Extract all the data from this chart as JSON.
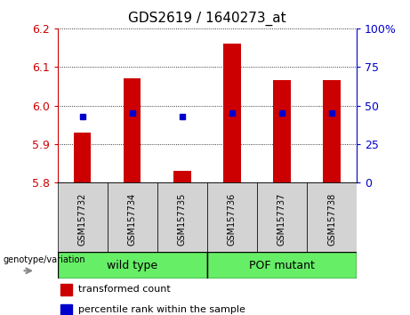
{
  "title": "GDS2619 / 1640273_at",
  "samples": [
    "GSM157732",
    "GSM157734",
    "GSM157735",
    "GSM157736",
    "GSM157737",
    "GSM157738"
  ],
  "red_values": [
    5.93,
    6.07,
    5.83,
    6.16,
    6.065,
    6.065
  ],
  "blue_values": [
    5.972,
    5.981,
    5.972,
    5.981,
    5.981,
    5.981
  ],
  "y_min": 5.8,
  "y_max": 6.2,
  "y_ticks_left": [
    5.8,
    5.9,
    6.0,
    6.1,
    6.2
  ],
  "y_ticks_right": [
    0,
    25,
    50,
    75,
    100
  ],
  "groups": [
    {
      "label": "wild type",
      "start": 0,
      "end": 3,
      "color": "#7cfc00"
    },
    {
      "label": "POF mutant",
      "start": 3,
      "end": 6,
      "color": "#7cfc00"
    }
  ],
  "group_label": "genotype/variation",
  "legend_red": "transformed count",
  "legend_blue": "percentile rank within the sample",
  "bar_color": "#cc0000",
  "dot_color": "#0000cc",
  "tick_bg_color": "#d3d3d3",
  "plot_bg": "#ffffff",
  "bar_width": 0.35,
  "title_color": "#000000",
  "left_axis_color": "#cc0000",
  "right_axis_color": "#0000cc",
  "green_color": "#66ee66"
}
